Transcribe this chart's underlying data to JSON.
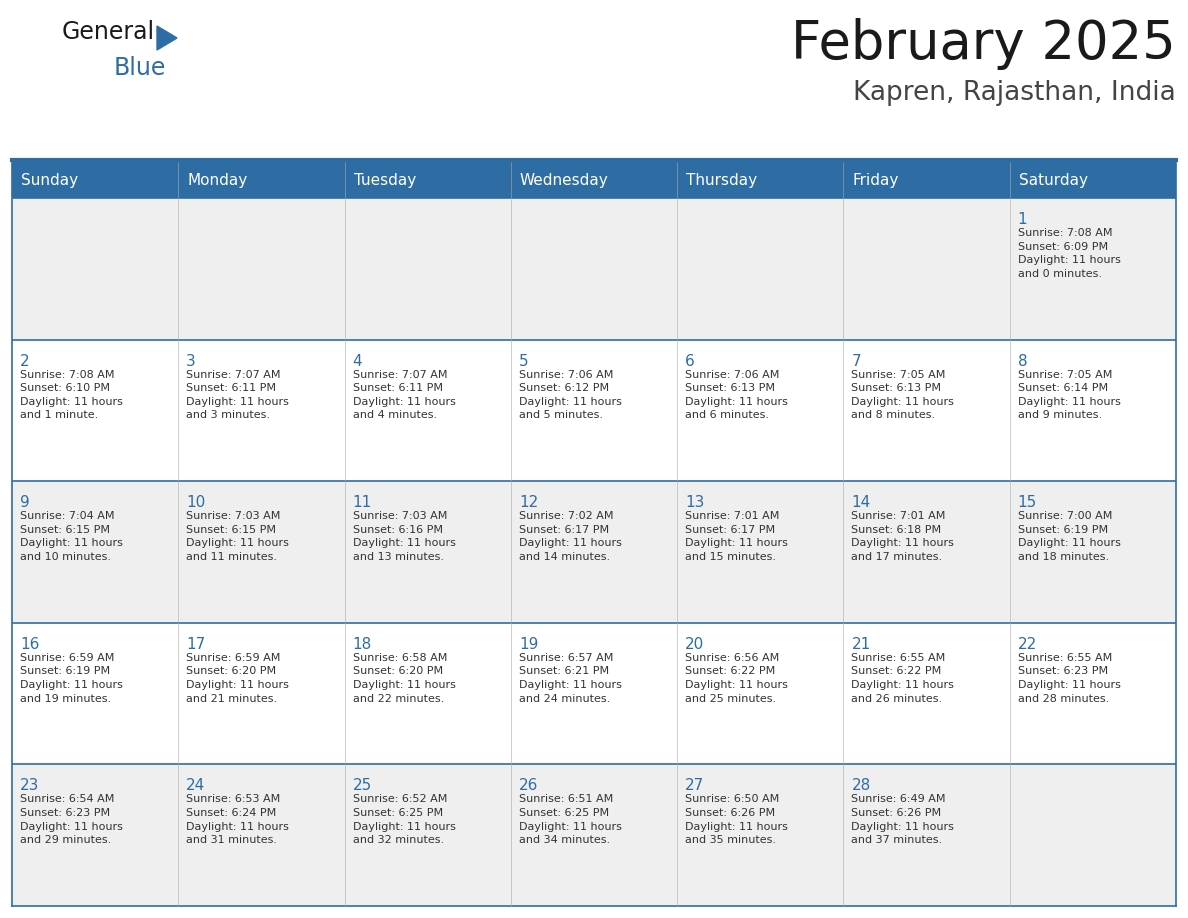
{
  "title": "February 2025",
  "subtitle": "Kapren, Rajasthan, India",
  "days_of_week": [
    "Sunday",
    "Monday",
    "Tuesday",
    "Wednesday",
    "Thursday",
    "Friday",
    "Saturday"
  ],
  "header_bg": "#2E6DA4",
  "header_text_color": "#FFFFFF",
  "cell_bg_odd": "#EFEFEF",
  "cell_bg_even": "#FFFFFF",
  "border_color": "#2E6DA4",
  "text_color": "#333333",
  "day_num_color": "#2E6DA4",
  "weeks": [
    [
      {
        "day": null,
        "info": null
      },
      {
        "day": null,
        "info": null
      },
      {
        "day": null,
        "info": null
      },
      {
        "day": null,
        "info": null
      },
      {
        "day": null,
        "info": null
      },
      {
        "day": null,
        "info": null
      },
      {
        "day": 1,
        "info": "Sunrise: 7:08 AM\nSunset: 6:09 PM\nDaylight: 11 hours\nand 0 minutes."
      }
    ],
    [
      {
        "day": 2,
        "info": "Sunrise: 7:08 AM\nSunset: 6:10 PM\nDaylight: 11 hours\nand 1 minute."
      },
      {
        "day": 3,
        "info": "Sunrise: 7:07 AM\nSunset: 6:11 PM\nDaylight: 11 hours\nand 3 minutes."
      },
      {
        "day": 4,
        "info": "Sunrise: 7:07 AM\nSunset: 6:11 PM\nDaylight: 11 hours\nand 4 minutes."
      },
      {
        "day": 5,
        "info": "Sunrise: 7:06 AM\nSunset: 6:12 PM\nDaylight: 11 hours\nand 5 minutes."
      },
      {
        "day": 6,
        "info": "Sunrise: 7:06 AM\nSunset: 6:13 PM\nDaylight: 11 hours\nand 6 minutes."
      },
      {
        "day": 7,
        "info": "Sunrise: 7:05 AM\nSunset: 6:13 PM\nDaylight: 11 hours\nand 8 minutes."
      },
      {
        "day": 8,
        "info": "Sunrise: 7:05 AM\nSunset: 6:14 PM\nDaylight: 11 hours\nand 9 minutes."
      }
    ],
    [
      {
        "day": 9,
        "info": "Sunrise: 7:04 AM\nSunset: 6:15 PM\nDaylight: 11 hours\nand 10 minutes."
      },
      {
        "day": 10,
        "info": "Sunrise: 7:03 AM\nSunset: 6:15 PM\nDaylight: 11 hours\nand 11 minutes."
      },
      {
        "day": 11,
        "info": "Sunrise: 7:03 AM\nSunset: 6:16 PM\nDaylight: 11 hours\nand 13 minutes."
      },
      {
        "day": 12,
        "info": "Sunrise: 7:02 AM\nSunset: 6:17 PM\nDaylight: 11 hours\nand 14 minutes."
      },
      {
        "day": 13,
        "info": "Sunrise: 7:01 AM\nSunset: 6:17 PM\nDaylight: 11 hours\nand 15 minutes."
      },
      {
        "day": 14,
        "info": "Sunrise: 7:01 AM\nSunset: 6:18 PM\nDaylight: 11 hours\nand 17 minutes."
      },
      {
        "day": 15,
        "info": "Sunrise: 7:00 AM\nSunset: 6:19 PM\nDaylight: 11 hours\nand 18 minutes."
      }
    ],
    [
      {
        "day": 16,
        "info": "Sunrise: 6:59 AM\nSunset: 6:19 PM\nDaylight: 11 hours\nand 19 minutes."
      },
      {
        "day": 17,
        "info": "Sunrise: 6:59 AM\nSunset: 6:20 PM\nDaylight: 11 hours\nand 21 minutes."
      },
      {
        "day": 18,
        "info": "Sunrise: 6:58 AM\nSunset: 6:20 PM\nDaylight: 11 hours\nand 22 minutes."
      },
      {
        "day": 19,
        "info": "Sunrise: 6:57 AM\nSunset: 6:21 PM\nDaylight: 11 hours\nand 24 minutes."
      },
      {
        "day": 20,
        "info": "Sunrise: 6:56 AM\nSunset: 6:22 PM\nDaylight: 11 hours\nand 25 minutes."
      },
      {
        "day": 21,
        "info": "Sunrise: 6:55 AM\nSunset: 6:22 PM\nDaylight: 11 hours\nand 26 minutes."
      },
      {
        "day": 22,
        "info": "Sunrise: 6:55 AM\nSunset: 6:23 PM\nDaylight: 11 hours\nand 28 minutes."
      }
    ],
    [
      {
        "day": 23,
        "info": "Sunrise: 6:54 AM\nSunset: 6:23 PM\nDaylight: 11 hours\nand 29 minutes."
      },
      {
        "day": 24,
        "info": "Sunrise: 6:53 AM\nSunset: 6:24 PM\nDaylight: 11 hours\nand 31 minutes."
      },
      {
        "day": 25,
        "info": "Sunrise: 6:52 AM\nSunset: 6:25 PM\nDaylight: 11 hours\nand 32 minutes."
      },
      {
        "day": 26,
        "info": "Sunrise: 6:51 AM\nSunset: 6:25 PM\nDaylight: 11 hours\nand 34 minutes."
      },
      {
        "day": 27,
        "info": "Sunrise: 6:50 AM\nSunset: 6:26 PM\nDaylight: 11 hours\nand 35 minutes."
      },
      {
        "day": 28,
        "info": "Sunrise: 6:49 AM\nSunset: 6:26 PM\nDaylight: 11 hours\nand 37 minutes."
      },
      {
        "day": null,
        "info": null
      }
    ]
  ]
}
